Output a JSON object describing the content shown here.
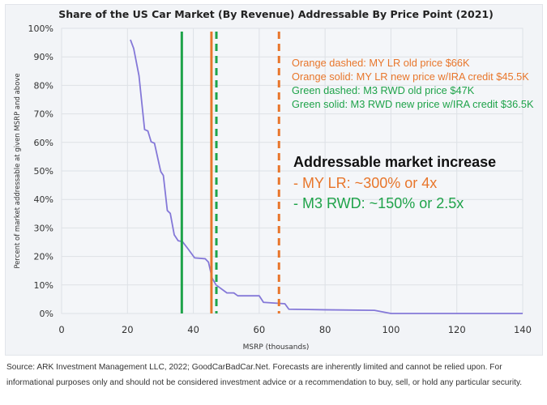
{
  "chart_data": {
    "type": "line",
    "title": "Share of the US Car Market (By Revenue) Addressable By Price Point (2021)",
    "xlabel": "MSRP (thousands)",
    "ylabel": "Percent of market addressable at given MSRP and above",
    "xlim": [
      0,
      140
    ],
    "ylim": [
      0,
      100
    ],
    "x_ticks": [
      "0",
      "20",
      "40",
      "60",
      "80",
      "100",
      "120",
      "140"
    ],
    "y_ticks": [
      "0%",
      "10%",
      "20%",
      "30%",
      "40%",
      "50%",
      "60%",
      "70%",
      "80%",
      "90%",
      "100%"
    ],
    "grid": true,
    "series": [
      {
        "color": "#8478d8",
        "points": [
          [
            20.9,
            96
          ],
          [
            21.9,
            92.9
          ],
          [
            23.5,
            83.4
          ],
          [
            25.2,
            64.5
          ],
          [
            26.2,
            64
          ],
          [
            27.2,
            60.2
          ],
          [
            28.2,
            59.7
          ],
          [
            30.1,
            49.8
          ],
          [
            30.9,
            48.4
          ],
          [
            32.1,
            36.1
          ],
          [
            33,
            35.1
          ],
          [
            34.2,
            27.6
          ],
          [
            35.4,
            25.5
          ],
          [
            36.7,
            25.2
          ],
          [
            38.3,
            22.8
          ],
          [
            40.4,
            19.5
          ],
          [
            43.6,
            19.2
          ],
          [
            44.6,
            18
          ],
          [
            45.7,
            12.4
          ],
          [
            46.9,
            10
          ],
          [
            50.2,
            7.2
          ],
          [
            52.3,
            7.2
          ],
          [
            53.5,
            6.2
          ],
          [
            60,
            6.2
          ],
          [
            61.3,
            3.9
          ],
          [
            64.1,
            3.7
          ],
          [
            67.8,
            3.4
          ],
          [
            69,
            1.5
          ],
          [
            79.7,
            1.3
          ],
          [
            95,
            1.1
          ],
          [
            100,
            0
          ],
          [
            140,
            0
          ]
        ]
      }
    ],
    "reference_lines": [
      {
        "x": 36.5,
        "color": "#1fa34a",
        "style": "solid"
      },
      {
        "x": 45.5,
        "color": "#e8762b",
        "style": "solid"
      },
      {
        "x": 47,
        "color": "#1fa34a",
        "style": "dashed"
      },
      {
        "x": 66,
        "color": "#e8762b",
        "style": "dashed"
      }
    ],
    "annotations": {
      "legend_lines": [
        {
          "text": "Orange dashed: MY LR old price $66K",
          "color": "#e8762b"
        },
        {
          "text": "Orange solid: MY LR new price w/IRA credit $45.5K",
          "color": "#e8762b"
        },
        {
          "text": "Green dashed: M3 RWD old price $47K",
          "color": "#1fa34a"
        },
        {
          "text": "Green solid: M3 RWD new price w/IRA credit $36.5K",
          "color": "#1fa34a"
        }
      ],
      "heading": "Addressable market increase",
      "items": [
        {
          "text": "- MY LR: ~300% or 4x",
          "color": "#e8762b"
        },
        {
          "text": "- M3 RWD: ~150% or 2.5x",
          "color": "#1fa34a"
        }
      ]
    }
  },
  "footer": {
    "source": "Source: ARK Investment Management LLC, 2022; GoodCarBadCar.Net. Forecasts are inherently limited and cannot be relied upon. For informational purposes only and should not be considered investment advice or a recommendation to buy, sell, or hold any particular security."
  }
}
